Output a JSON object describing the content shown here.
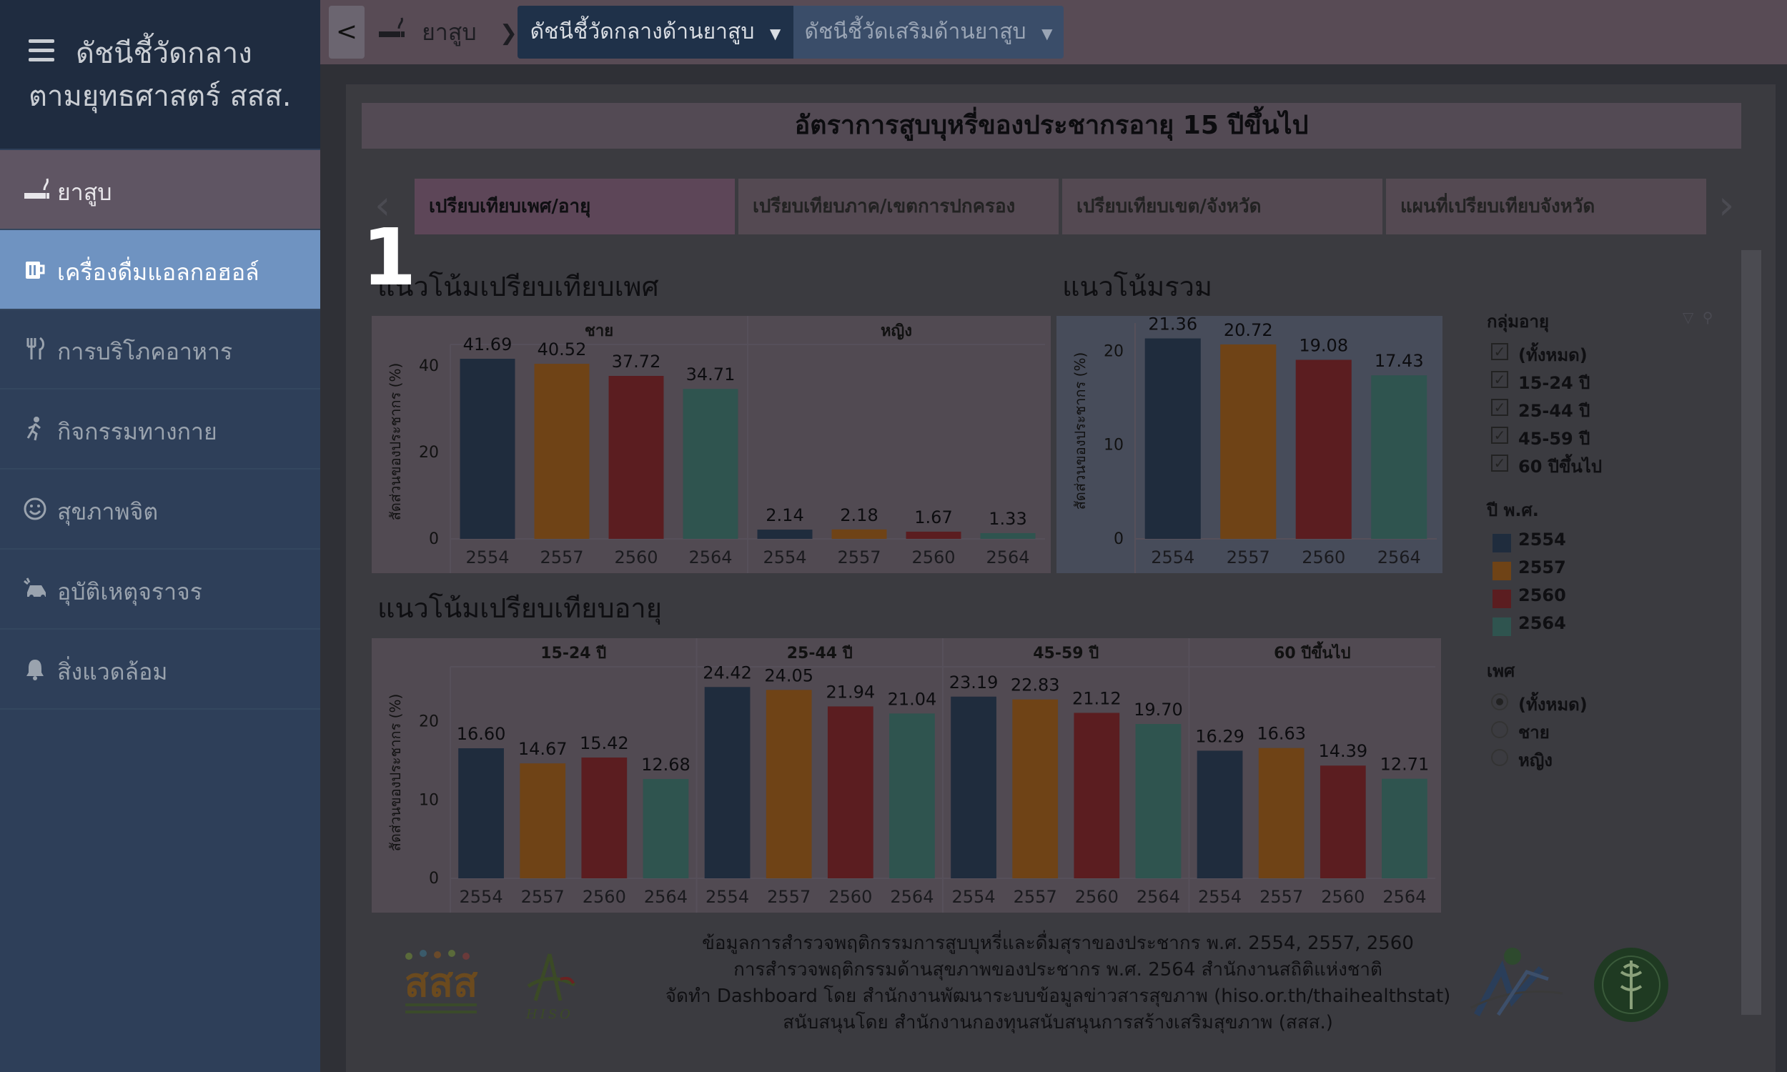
{
  "sidebar": {
    "title_line1": "ดัชนีชี้วัดกลาง",
    "title_line2": "ตามยุทธศาสตร์ สสส.",
    "items": [
      {
        "label": "ยาสูบ",
        "icon": "smoking-icon"
      },
      {
        "label": "เครื่องดื่มแอลกอฮอล์",
        "icon": "beer-mug-icon"
      },
      {
        "label": "การบริโภคอาหาร",
        "icon": "fork-knife-icon"
      },
      {
        "label": "กิจกรรมทางกาย",
        "icon": "running-person-icon"
      },
      {
        "label": "สุขภาพจิต",
        "icon": "smiley-icon"
      },
      {
        "label": "อุบัติเหตุจราจร",
        "icon": "car-crash-icon"
      },
      {
        "label": "สิ่งแวดล้อม",
        "icon": "bell-icon"
      }
    ]
  },
  "topbar": {
    "back": "<",
    "breadcrumb": "ยาสูบ",
    "tab_main": "ดัชนีชี้วัดกลางด้านยาสูบ",
    "tab_secondary": "ดัชนีชี้วัดเสริมด้านยาสูบ"
  },
  "page_title": "อัตราการสูบบุหรี่ของประชากรอายุ 15 ปีขึ้นไป",
  "subtabs": [
    "เปรียบเทียบเพศ/อายุ",
    "เปรียบเทียบภาค/เขตการปกครอง",
    "เปรียบเทียบเขต/จังหวัด",
    "แผนที่เปรียบเทียบจังหวัด"
  ],
  "overlay_number": "1",
  "sections": {
    "gender": "แนวโน้มเปรียบเทียบเพศ",
    "total": "แนวโน้มรวม",
    "age": "แนวโน้มเปรียบเทียบอายุ"
  },
  "colors": {
    "2554": "#1f2c3d",
    "2557": "#6f4316",
    "2560": "#5b1d20",
    "2564": "#2f544f"
  },
  "chart_data": [
    {
      "type": "bar",
      "title": "แนวโน้มเปรียบเทียบเพศ",
      "ylabel": "สัดส่วนของประชากร (%)",
      "ylim": [
        0,
        45
      ],
      "yticks": [
        0,
        20,
        40
      ],
      "panels": [
        {
          "name": "ชาย",
          "categories": [
            "2554",
            "2557",
            "2560",
            "2564"
          ],
          "values": [
            41.69,
            40.52,
            37.72,
            34.71
          ]
        },
        {
          "name": "หญิง",
          "categories": [
            "2554",
            "2557",
            "2560",
            "2564"
          ],
          "values": [
            2.14,
            2.18,
            1.67,
            1.33
          ]
        }
      ]
    },
    {
      "type": "bar",
      "title": "แนวโน้มรวม",
      "ylabel": "สัดส่วนของประชากร (%)",
      "ylim": [
        0,
        23
      ],
      "yticks": [
        0,
        10,
        20
      ],
      "panels": [
        {
          "name": "",
          "categories": [
            "2554",
            "2557",
            "2560",
            "2564"
          ],
          "values": [
            21.36,
            20.72,
            19.08,
            17.43
          ]
        }
      ]
    },
    {
      "type": "bar",
      "title": "แนวโน้มเปรียบเทียบอายุ",
      "ylabel": "สัดส่วนของประชากร (%)",
      "ylim": [
        0,
        27
      ],
      "yticks": [
        0,
        10,
        20
      ],
      "panels": [
        {
          "name": "15-24 ปี",
          "categories": [
            "2554",
            "2557",
            "2560",
            "2564"
          ],
          "values": [
            16.6,
            14.67,
            15.42,
            12.68
          ]
        },
        {
          "name": "25-44 ปี",
          "categories": [
            "2554",
            "2557",
            "2560",
            "2564"
          ],
          "values": [
            24.42,
            24.05,
            21.94,
            21.04
          ]
        },
        {
          "name": "45-59 ปี",
          "categories": [
            "2554",
            "2557",
            "2560",
            "2564"
          ],
          "values": [
            23.19,
            22.83,
            21.12,
            19.7
          ]
        },
        {
          "name": "60 ปีขึ้นไป",
          "categories": [
            "2554",
            "2557",
            "2560",
            "2564"
          ],
          "values": [
            16.29,
            16.63,
            14.39,
            12.71
          ]
        }
      ]
    }
  ],
  "filters": {
    "age_header": "กลุ่มอายุ",
    "age_options": [
      "(ทั้งหมด)",
      "15-24 ปี",
      "25-44 ปี",
      "45-59 ปี",
      "60 ปีขึ้นไป"
    ],
    "year_header": "ปี พ.ศ.",
    "years": [
      "2554",
      "2557",
      "2560",
      "2564"
    ],
    "sex_header": "เพศ",
    "sex_options": [
      "(ทั้งหมด)",
      "ชาย",
      "หญิง"
    ],
    "sex_selected": "(ทั้งหมด)"
  },
  "footer": {
    "line1": "ข้อมูลการสำรวจพฤติกรรมการสูบบุหรี่และดื่มสุราของประชากร พ.ศ. 2554, 2557, 2560",
    "line2": "การสำรวจพฤติกรรมด้านสุขภาพของประชากร พ.ศ. 2564 สำนักงานสถิติแห่งชาติ",
    "line3": "จัดทำ Dashboard โดย สำนักงานพัฒนาระบบข้อมูลข่าวสารสุขภาพ (hiso.or.th/thaihealthstat)",
    "line4": "สนับสนุนโดย สำนักงานกองทุนสนับสนุนการสร้างเสริมสุขภาพ (สสส.)"
  },
  "logos": {
    "thaihealth": "สสส",
    "hiso": "HISO"
  }
}
